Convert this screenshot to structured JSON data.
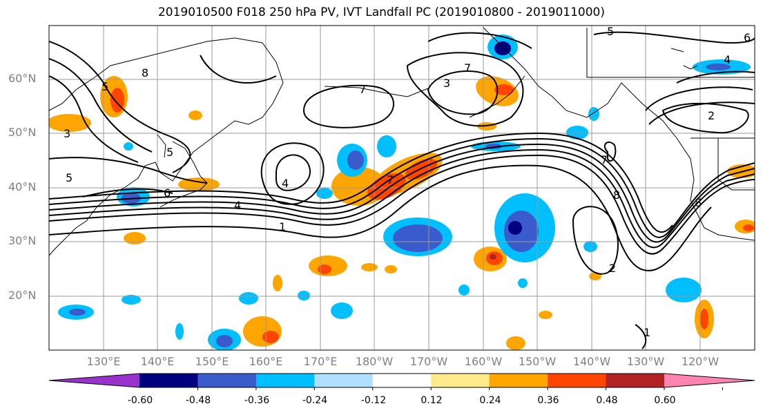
{
  "title": "2019010500 F018 250 hPa PV, IVT Landfall PC (2019010800 - 2019011000)",
  "lat_labels": [
    "60°N",
    "50°N",
    "40°N",
    "30°N",
    "20°N"
  ],
  "lon_labels": [
    "130°E",
    "140°E",
    "150°E",
    "160°E",
    "170°E",
    "180°W",
    "170°W",
    "160°W",
    "150°W",
    "140°W",
    "130°W",
    "120°W"
  ],
  "colorbar": {
    "ticks": [
      "-0.60",
      "-0.48",
      "-0.36",
      "-0.24",
      "-0.12",
      "0.12",
      "0.24",
      "0.36",
      "0.48",
      "0.60"
    ],
    "colors": [
      "#9932CC",
      "#000080",
      "#3A5BCC",
      "#00BFFF",
      "#B0E0FF",
      "#FFFFFF",
      "#FFEB8A",
      "#FFA500",
      "#FF4500",
      "#B22222",
      "#FF85B0"
    ]
  },
  "pv_contour_labels": [
    "7",
    "7",
    "5",
    "3",
    "5",
    "6",
    "4",
    "1",
    "4",
    "7",
    "8",
    "8",
    "5",
    "6",
    "4",
    "2",
    "2",
    "1",
    "7",
    "3",
    "5",
    "8"
  ]
}
